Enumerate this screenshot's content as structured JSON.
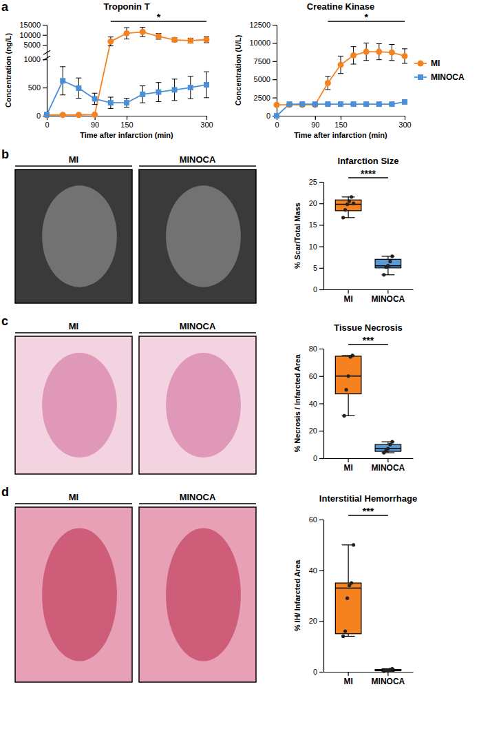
{
  "chart_data": [
    {
      "type": "line",
      "title": "Troponin T",
      "x_label": "Time after infarction (min)",
      "y_label": "Concentration (ng/L)",
      "x": [
        0,
        30,
        60,
        90,
        120,
        150,
        180,
        210,
        240,
        270,
        300
      ],
      "xlim": [
        0,
        300
      ],
      "xticks": [
        0,
        90,
        150,
        300
      ],
      "ylim": [
        0,
        15000
      ],
      "ybreak": [
        1000,
        2000
      ],
      "yticks": [
        0,
        500,
        1000,
        5000,
        10000,
        15000
      ],
      "series": [
        {
          "color": "#f5821f",
          "marker": "circle",
          "values": [
            10,
            15,
            15,
            20,
            6800,
            10800,
            11500,
            9300,
            7600,
            7200,
            7700
          ],
          "errors": [
            5,
            5,
            5,
            5,
            2200,
            2800,
            2300,
            1400,
            1000,
            1200,
            1500
          ]
        },
        {
          "color": "#4a90d9",
          "marker": "square",
          "values": [
            20,
            620,
            490,
            300,
            230,
            230,
            380,
            420,
            460,
            500,
            550
          ],
          "errors": [
            5,
            250,
            180,
            100,
            100,
            80,
            150,
            170,
            190,
            200,
            230
          ]
        }
      ],
      "annotations": [
        {
          "text": "*",
          "x": [
            120,
            300
          ]
        }
      ]
    },
    {
      "type": "line",
      "title": "Creatine Kinase",
      "x_label": "Time after infarction (min)",
      "y_label": "Concentration (U/L)",
      "x": [
        0,
        30,
        60,
        90,
        120,
        150,
        180,
        210,
        240,
        270,
        300
      ],
      "xlim": [
        0,
        300
      ],
      "xticks": [
        0,
        90,
        150,
        300
      ],
      "ylim": [
        0,
        12500
      ],
      "yticks": [
        0,
        2500,
        5000,
        7500,
        10000,
        12500
      ],
      "legend": "right",
      "series": [
        {
          "name": "MI",
          "color": "#f5821f",
          "marker": "circle",
          "values": [
            1500,
            1500,
            1500,
            1500,
            4500,
            7000,
            8300,
            8800,
            8800,
            8700,
            8200
          ],
          "errors": [
            150,
            100,
            100,
            100,
            900,
            1200,
            1200,
            1200,
            1100,
            1100,
            1000
          ]
        },
        {
          "name": "MINOCA",
          "color": "#4a90d9",
          "marker": "square",
          "values": [
            0,
            1600,
            1600,
            1600,
            1600,
            1600,
            1600,
            1600,
            1600,
            1600,
            1900
          ],
          "errors": [
            0,
            100,
            100,
            100,
            100,
            100,
            100,
            100,
            100,
            100,
            200
          ]
        }
      ],
      "annotations": [
        {
          "text": "*",
          "x": [
            120,
            300
          ]
        }
      ]
    },
    {
      "type": "box",
      "title": "Infarction Size",
      "y_label": "% Scar/Total Mass",
      "categories": [
        "MI",
        "MINOCA"
      ],
      "ylim": [
        0,
        25
      ],
      "yticks": [
        0,
        5,
        10,
        15,
        20,
        25
      ],
      "boxes": [
        {
          "color": "#f5821f",
          "min": 16.7,
          "q1": 18.3,
          "median": 19.8,
          "q3": 20.8,
          "max": 21.5,
          "points": [
            16.7,
            18.5,
            19.8,
            20.5,
            21.5,
            20.0
          ]
        },
        {
          "color": "#5b9bd5",
          "min": 3.4,
          "q1": 5.0,
          "median": 5.5,
          "q3": 7.0,
          "max": 7.7,
          "points": [
            3.4,
            5.2,
            5.5,
            6.5,
            7.7
          ]
        }
      ],
      "annotations": [
        {
          "text": "****"
        }
      ]
    },
    {
      "type": "box",
      "title": "Tissue Necrosis",
      "y_label": "% Necrosis / Infarcted Area",
      "categories": [
        "MI",
        "MINOCA"
      ],
      "ylim": [
        0,
        80
      ],
      "yticks": [
        0,
        20,
        40,
        60,
        80
      ],
      "boxes": [
        {
          "color": "#f5821f",
          "min": 31,
          "q1": 47,
          "median": 60,
          "q3": 74.5,
          "max": 75,
          "points": [
            31,
            50,
            60,
            74,
            75
          ]
        },
        {
          "color": "#5b9bd5",
          "min": 4,
          "q1": 5,
          "median": 7,
          "q3": 10,
          "max": 12,
          "points": [
            4,
            5.5,
            7,
            10,
            12
          ]
        }
      ],
      "annotations": [
        {
          "text": "***"
        }
      ]
    },
    {
      "type": "box",
      "title": "Interstitial Hemorrhage",
      "y_label": "% IH/ Infarcted Area",
      "categories": [
        "MI",
        "MINOCA"
      ],
      "ylim": [
        0,
        60
      ],
      "yticks": [
        0,
        20,
        40,
        60
      ],
      "boxes": [
        {
          "color": "#f5821f",
          "min": 14,
          "q1": 15,
          "median": 33,
          "q3": 35,
          "max": 50,
          "points": [
            14,
            16,
            29,
            34,
            35,
            50
          ]
        },
        {
          "color": "#5b9bd5",
          "min": 0.2,
          "q1": 0.4,
          "median": 0.6,
          "q3": 0.9,
          "max": 1.2,
          "points": [
            0.2,
            0.5,
            0.6,
            0.9,
            1.2
          ]
        }
      ],
      "annotations": [
        {
          "text": "***"
        }
      ]
    }
  ],
  "figure": {
    "panels": [
      {
        "letter": "a"
      },
      {
        "letter": "b",
        "image_titles": [
          "MI",
          "MINOCA"
        ]
      },
      {
        "letter": "c",
        "image_titles": [
          "MI",
          "MINOCA"
        ]
      },
      {
        "letter": "d",
        "image_titles": [
          "MI",
          "MINOCA"
        ]
      }
    ]
  }
}
